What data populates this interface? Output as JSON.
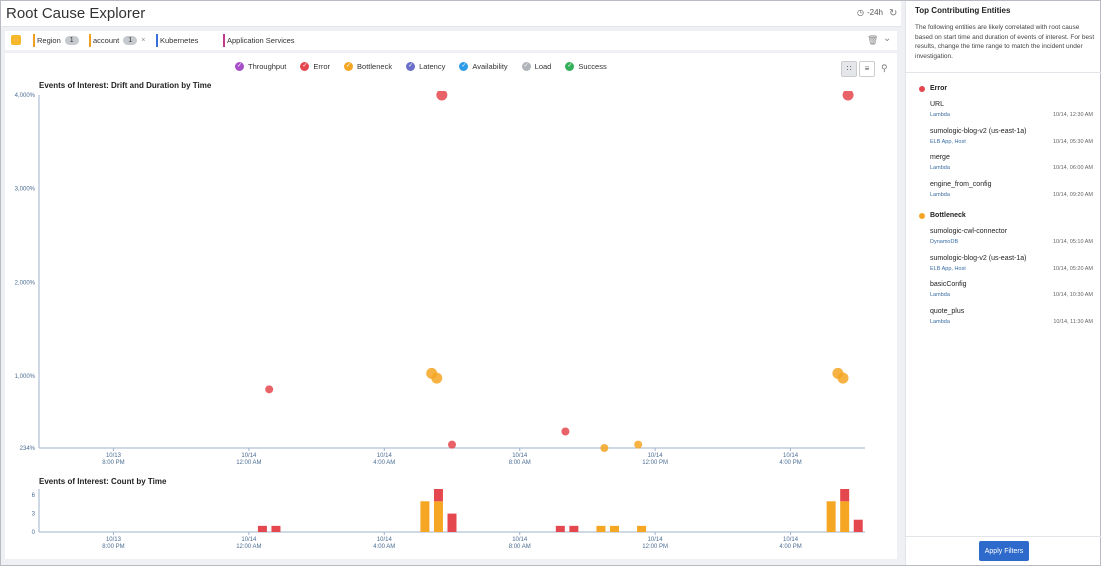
{
  "app": {
    "title": "Root Cause Explorer",
    "time_range": "-24h"
  },
  "filters": [
    {
      "label": "Region",
      "count": "1",
      "color": "#f0a020",
      "removable": false
    },
    {
      "label": "account",
      "count": "1",
      "color": "#f0a020",
      "removable": true
    },
    {
      "label": "Kubernetes",
      "count": null,
      "color": "#3a6ed8",
      "removable": false
    },
    {
      "label": "Application Services",
      "count": null,
      "color": "#c2388a",
      "removable": false
    }
  ],
  "legend": [
    {
      "label": "Throughput",
      "color": "#a64fc8"
    },
    {
      "label": "Error",
      "color": "#e5474e"
    },
    {
      "label": "Bottleneck",
      "color": "#f5a623"
    },
    {
      "label": "Latency",
      "color": "#6a6fc8"
    },
    {
      "label": "Availability",
      "color": "#2e9be8"
    },
    {
      "label": "Load",
      "color": "#b0b4ba"
    },
    {
      "label": "Success",
      "color": "#34b05a"
    }
  ],
  "chart_data": [
    {
      "type": "scatter",
      "title": "Events of Interest: Drift and Duration by Time",
      "yticks": [
        "4,000%",
        "3,000%",
        "2,000%",
        "1,000%",
        "234%"
      ],
      "ytick_values": [
        4000,
        3000,
        2000,
        1000,
        234
      ],
      "ylim": [
        234,
        4000
      ],
      "xticks": [
        [
          "10/13",
          "8:00 PM"
        ],
        [
          "10/14",
          "12:00 AM"
        ],
        [
          "10/14",
          "4:00 AM"
        ],
        [
          "10/14",
          "8:00 AM"
        ],
        [
          "10/14",
          "12:00 PM"
        ],
        [
          "10/14",
          "4:00 PM"
        ]
      ],
      "xtick_hours": [
        -4,
        0,
        4,
        8,
        12,
        16
      ],
      "xlim_hours": [
        -6.2,
        18.2
      ],
      "points": [
        {
          "t": 0.6,
          "y": 860,
          "type": "Error",
          "size": 4
        },
        {
          "t": 5.4,
          "y": 1030,
          "type": "Bottleneck",
          "size": 5.5
        },
        {
          "t": 5.55,
          "y": 980,
          "type": "Bottleneck",
          "size": 5.5
        },
        {
          "t": 5.7,
          "y": 4000,
          "type": "Error",
          "size": 5.5
        },
        {
          "t": 6.0,
          "y": 270,
          "type": "Error",
          "size": 4
        },
        {
          "t": 9.35,
          "y": 410,
          "type": "Error",
          "size": 4
        },
        {
          "t": 10.5,
          "y": 234,
          "type": "Bottleneck",
          "size": 4
        },
        {
          "t": 11.5,
          "y": 270,
          "type": "Bottleneck",
          "size": 4
        },
        {
          "t": 17.4,
          "y": 1030,
          "type": "Bottleneck",
          "size": 5.5
        },
        {
          "t": 17.55,
          "y": 980,
          "type": "Bottleneck",
          "size": 5.5
        },
        {
          "t": 17.7,
          "y": 4000,
          "type": "Error",
          "size": 5.5
        }
      ]
    },
    {
      "type": "bar",
      "title": "Events of Interest: Count by Time",
      "yticks": [
        "6",
        "3",
        "0"
      ],
      "ylim": [
        0,
        7
      ],
      "xticks": [
        [
          "10/13",
          "8:00 PM"
        ],
        [
          "10/14",
          "12:00 AM"
        ],
        [
          "10/14",
          "4:00 AM"
        ],
        [
          "10/14",
          "8:00 AM"
        ],
        [
          "10/14",
          "12:00 PM"
        ],
        [
          "10/14",
          "4:00 PM"
        ]
      ],
      "bars": [
        {
          "t": 0.4,
          "Bottleneck": 0,
          "Error": 1
        },
        {
          "t": 0.8,
          "Bottleneck": 0,
          "Error": 1
        },
        {
          "t": 5.2,
          "Bottleneck": 5,
          "Error": 0
        },
        {
          "t": 5.6,
          "Bottleneck": 5,
          "Error": 2
        },
        {
          "t": 6.0,
          "Bottleneck": 0,
          "Error": 3
        },
        {
          "t": 9.2,
          "Bottleneck": 0,
          "Error": 1
        },
        {
          "t": 9.6,
          "Bottleneck": 0,
          "Error": 1
        },
        {
          "t": 10.4,
          "Bottleneck": 1,
          "Error": 0
        },
        {
          "t": 10.8,
          "Bottleneck": 1,
          "Error": 0
        },
        {
          "t": 11.6,
          "Bottleneck": 1,
          "Error": 0
        },
        {
          "t": 17.2,
          "Bottleneck": 5,
          "Error": 0
        },
        {
          "t": 17.6,
          "Bottleneck": 5,
          "Error": 2
        },
        {
          "t": 18.0,
          "Bottleneck": 0,
          "Error": 2
        }
      ]
    }
  ],
  "sidebar": {
    "title": "Top Contributing Entities",
    "description": "The following entities are likely correlated with root cause based on start time and duration of events of interest. For best results, change the time range to match the incident under investigation.",
    "groups": [
      {
        "label": "Error",
        "color": "#e5474e",
        "entities": [
          {
            "name": "URL",
            "type": "Lambda",
            "time": "10/14, 12:30 AM"
          },
          {
            "name": "sumologic-blog-v2 (us-east-1a)",
            "type": "ELB App, Host",
            "time": "10/14, 05:30 AM"
          },
          {
            "name": "merge",
            "type": "Lambda",
            "time": "10/14, 06:00 AM"
          },
          {
            "name": "engine_from_config",
            "type": "Lambda",
            "time": "10/14, 09:20 AM"
          }
        ]
      },
      {
        "label": "Bottleneck",
        "color": "#f5a623",
        "entities": [
          {
            "name": "sumologic-cwl-connector",
            "type": "DynamoDB",
            "time": "10/14, 05:10 AM"
          },
          {
            "name": "sumologic-blog-v2 (us-east-1a)",
            "type": "ELB App, Host",
            "time": "10/14, 05:20 AM"
          },
          {
            "name": "basicConfig",
            "type": "Lambda",
            "time": "10/14, 10:30 AM"
          },
          {
            "name": "quote_plus",
            "type": "Lambda",
            "time": "10/14, 11:30 AM"
          }
        ]
      }
    ],
    "apply_label": "Apply Filters"
  }
}
